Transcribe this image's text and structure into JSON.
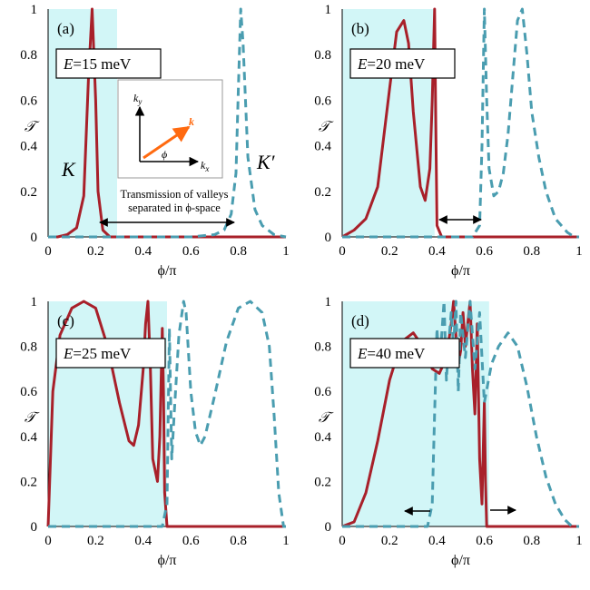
{
  "colors": {
    "K": "#a8202a",
    "Kprime": "#4a9db0",
    "shade": "#d2f6f7",
    "arrow": "#ff6a10"
  },
  "axes": {
    "xlabel": "ϕ/π",
    "ylabel": "𝒯",
    "xticks": [
      "0",
      "0.2",
      "0.4",
      "0.6",
      "0.8",
      "1"
    ],
    "yticks": [
      "0",
      "0.2",
      "0.4",
      "0.6",
      "0.8",
      "1"
    ]
  },
  "panels": [
    {
      "label": "(a)",
      "E_var": "E",
      "E_text": "=15 meV",
      "shade": [
        0,
        0.29
      ]
    },
    {
      "label": "(b)",
      "E_var": "E",
      "E_text": "=20 meV",
      "shade": [
        0,
        0.39
      ]
    },
    {
      "label": "(c)",
      "E_var": "E",
      "E_text": "=25 meV",
      "shade": [
        0,
        0.5
      ]
    },
    {
      "label": "(d)",
      "E_var": "E",
      "E_text": "=40 meV",
      "shade": [
        0,
        0.62
      ]
    }
  ],
  "annotations": {
    "valley_K": "K",
    "valley_Kprime": "K′",
    "note_line1": "Transmission of valleys",
    "note_line2": "separated in ϕ-space",
    "inset_ky": "k",
    "inset_ky_sub": "y",
    "inset_kx": "k",
    "inset_kx_sub": "x",
    "inset_phi": "ϕ",
    "inset_k": "k⃗"
  },
  "chart_data": [
    {
      "type": "line",
      "title": "(a) E=15 meV",
      "xlabel": "ϕ/π",
      "ylabel": "𝒯",
      "xlim": [
        0,
        1
      ],
      "ylim": [
        0,
        1
      ],
      "series": [
        {
          "name": "K",
          "style": "solid",
          "x": [
            0,
            0.04,
            0.08,
            0.12,
            0.15,
            0.17,
            0.185,
            0.2,
            0.21,
            0.23,
            0.26,
            0.3,
            0.4,
            1
          ],
          "y": [
            0,
            0,
            0.01,
            0.04,
            0.18,
            0.7,
            1.0,
            0.6,
            0.2,
            0.03,
            0,
            0,
            0,
            0
          ]
        },
        {
          "name": "K'",
          "style": "dashed",
          "x": [
            0,
            0.6,
            0.7,
            0.74,
            0.77,
            0.79,
            0.8,
            0.81,
            0.82,
            0.84,
            0.87,
            0.9,
            0.95,
            1
          ],
          "y": [
            0,
            0,
            0.01,
            0.03,
            0.1,
            0.28,
            0.65,
            1.0,
            0.85,
            0.35,
            0.12,
            0.05,
            0.01,
            0
          ]
        }
      ]
    },
    {
      "type": "line",
      "title": "(b) E=20 meV",
      "xlabel": "ϕ/π",
      "ylabel": "𝒯",
      "xlim": [
        0,
        1
      ],
      "ylim": [
        0,
        1
      ],
      "series": [
        {
          "name": "K",
          "style": "solid",
          "x": [
            0,
            0.05,
            0.1,
            0.15,
            0.2,
            0.23,
            0.26,
            0.28,
            0.3,
            0.33,
            0.35,
            0.37,
            0.38,
            0.39,
            0.395,
            0.4,
            0.42,
            1
          ],
          "y": [
            0,
            0.03,
            0.08,
            0.22,
            0.65,
            0.9,
            0.95,
            0.85,
            0.55,
            0.22,
            0.16,
            0.3,
            0.6,
            1.0,
            0.5,
            0.05,
            0,
            0
          ]
        },
        {
          "name": "K'",
          "style": "dashed",
          "x": [
            0,
            0.55,
            0.58,
            0.59,
            0.6,
            0.61,
            0.62,
            0.64,
            0.66,
            0.68,
            0.7,
            0.72,
            0.74,
            0.76,
            0.78,
            0.8,
            0.83,
            0.86,
            0.9,
            0.95,
            0.98,
            1
          ],
          "y": [
            0,
            0,
            0.05,
            0.4,
            1.0,
            0.6,
            0.3,
            0.18,
            0.2,
            0.28,
            0.45,
            0.7,
            0.95,
            1.0,
            0.8,
            0.55,
            0.35,
            0.2,
            0.08,
            0.02,
            0,
            0
          ]
        }
      ]
    },
    {
      "type": "line",
      "title": "(c) E=25 meV",
      "xlabel": "ϕ/π",
      "ylabel": "𝒯",
      "xlim": [
        0,
        1
      ],
      "ylim": [
        0,
        1
      ],
      "series": [
        {
          "name": "K",
          "style": "solid",
          "x": [
            0,
            0.02,
            0.05,
            0.1,
            0.15,
            0.2,
            0.25,
            0.3,
            0.34,
            0.36,
            0.38,
            0.4,
            0.41,
            0.42,
            0.43,
            0.44,
            0.46,
            0.47,
            0.48,
            0.485,
            0.49,
            0.5,
            0.52,
            1
          ],
          "y": [
            0,
            0.6,
            0.85,
            0.97,
            1.0,
            0.97,
            0.8,
            0.55,
            0.38,
            0.36,
            0.45,
            0.7,
            0.9,
            1.0,
            0.7,
            0.3,
            0.2,
            0.4,
            0.88,
            0.6,
            0.15,
            0,
            0,
            0
          ]
        },
        {
          "name": "K'",
          "style": "dashed",
          "x": [
            0,
            0.48,
            0.5,
            0.51,
            0.52,
            0.53,
            0.55,
            0.57,
            0.58,
            0.6,
            0.62,
            0.64,
            0.66,
            0.7,
            0.75,
            0.8,
            0.85,
            0.9,
            0.93,
            0.95,
            0.97,
            0.99,
            1
          ],
          "y": [
            0,
            0,
            0.1,
            0.88,
            0.3,
            0.5,
            0.85,
            1.0,
            0.95,
            0.6,
            0.42,
            0.36,
            0.4,
            0.58,
            0.82,
            0.97,
            1.0,
            0.95,
            0.8,
            0.5,
            0.15,
            0,
            0
          ]
        }
      ]
    },
    {
      "type": "line",
      "title": "(d) E=40 meV",
      "xlabel": "ϕ/π",
      "ylabel": "𝒯",
      "xlim": [
        0,
        1
      ],
      "ylim": [
        0,
        1
      ],
      "series": [
        {
          "name": "K",
          "style": "solid",
          "x": [
            0,
            0.05,
            0.1,
            0.15,
            0.2,
            0.25,
            0.3,
            0.34,
            0.38,
            0.41,
            0.44,
            0.46,
            0.47,
            0.48,
            0.49,
            0.5,
            0.51,
            0.52,
            0.53,
            0.54,
            0.55,
            0.56,
            0.57,
            0.58,
            0.59,
            0.6,
            0.605,
            0.61,
            0.62,
            1
          ],
          "y": [
            0,
            0.02,
            0.15,
            0.38,
            0.65,
            0.82,
            0.86,
            0.8,
            0.7,
            0.68,
            0.75,
            0.9,
            1.0,
            0.85,
            0.72,
            0.78,
            0.95,
            0.8,
            0.9,
            1.0,
            0.7,
            0.5,
            0.9,
            0.3,
            0.1,
            0.55,
            0.2,
            0,
            0,
            0
          ]
        },
        {
          "name": "K'",
          "style": "dashed",
          "x": [
            0,
            0.36,
            0.38,
            0.39,
            0.4,
            0.41,
            0.42,
            0.43,
            0.44,
            0.45,
            0.46,
            0.47,
            0.48,
            0.49,
            0.5,
            0.52,
            0.54,
            0.56,
            0.58,
            0.6,
            0.63,
            0.66,
            0.7,
            0.74,
            0.78,
            0.82,
            0.86,
            0.9,
            0.94,
            0.97,
            1
          ],
          "y": [
            0,
            0,
            0.1,
            0.5,
            0.88,
            0.7,
            0.85,
            1.0,
            0.65,
            0.82,
            0.95,
            0.8,
            1.0,
            0.6,
            0.95,
            0.75,
            1.0,
            0.7,
            0.95,
            0.55,
            0.72,
            0.8,
            0.86,
            0.8,
            0.62,
            0.4,
            0.22,
            0.1,
            0.03,
            0,
            0
          ]
        }
      ]
    }
  ]
}
